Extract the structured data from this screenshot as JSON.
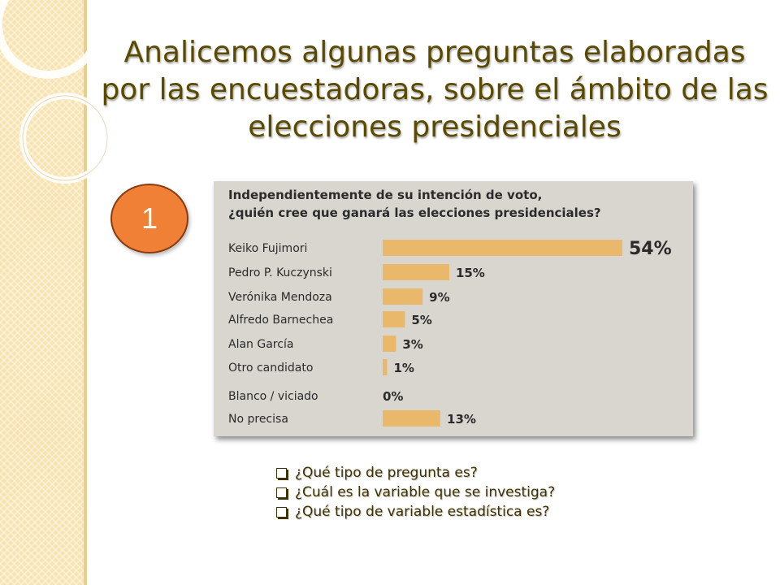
{
  "slide": {
    "title": "Analicemos algunas preguntas elaboradas por las encuestadoras, sobre el ámbito de las elecciones presidenciales",
    "badge_number": "1",
    "questions": [
      "¿Qué tipo de pregunta es?",
      "¿Cuál es la variable que se investiga?",
      "¿Qué tipo de variable estadística es?"
    ]
  },
  "colors": {
    "accent": "#ef8035",
    "bar": "#e9b86a",
    "title_text": "#5a4a00",
    "side_band": "#f7e3b0"
  },
  "chart_data": {
    "type": "bar",
    "orientation": "horizontal",
    "title_lines": [
      "Independientemente de su intención de voto,",
      "¿quién cree que ganará las elecciones presidenciales?"
    ],
    "categories": [
      "Keiko Fujimori",
      "Pedro P. Kuczynski",
      "Verónika Mendoza",
      "Alfredo Barnechea",
      "Alan García",
      "Otro candidato",
      "Blanco / viciado",
      "No precisa"
    ],
    "values": [
      54,
      15,
      9,
      5,
      3,
      1,
      0,
      13
    ],
    "value_labels": [
      "54%",
      "15%",
      "9%",
      "5%",
      "3%",
      "1%",
      "0%",
      "13%"
    ],
    "xlim": [
      0,
      54
    ],
    "grid": false,
    "legend": "none"
  }
}
